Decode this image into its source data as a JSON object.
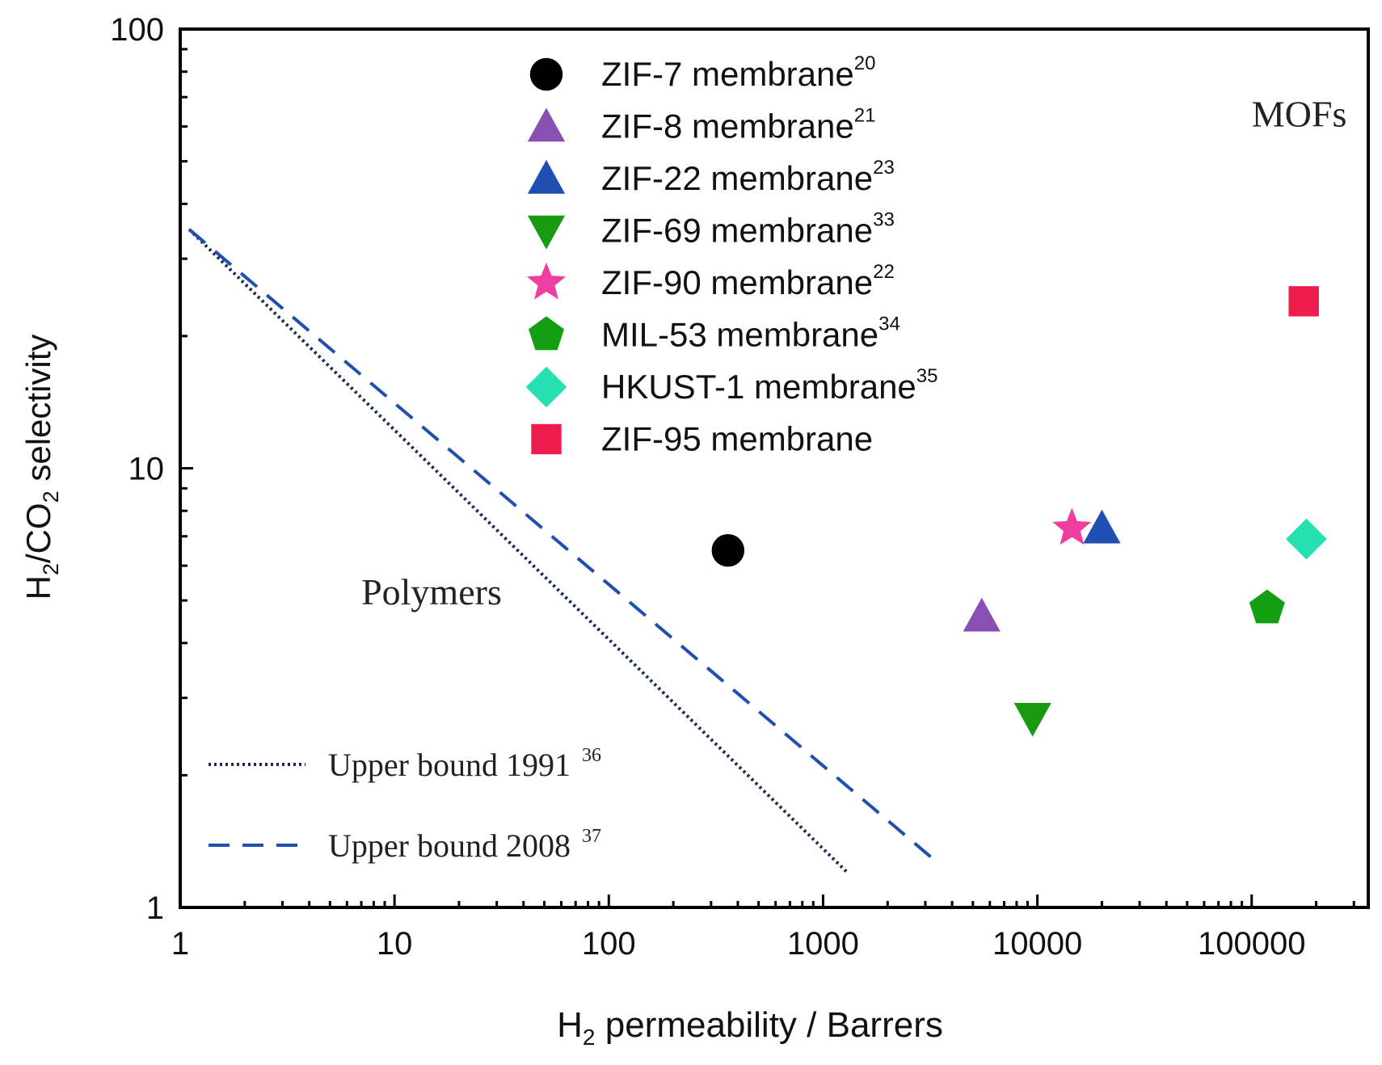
{
  "chart_data": {
    "type": "scatter",
    "xscale": "log",
    "yscale": "log",
    "xlim": [
      1,
      350000
    ],
    "ylim": [
      1,
      100
    ],
    "xlabel": {
      "main": "H",
      "sub": "2",
      "rest": " permeability / Barrers"
    },
    "ylabel": {
      "a": "H",
      "sub1": "2",
      "b": "/CO",
      "sub2": "2",
      "c": " selectivity"
    },
    "xticks": [
      {
        "value": 1,
        "label": "1"
      },
      {
        "value": 10,
        "label": "10"
      },
      {
        "value": 100,
        "label": "100"
      },
      {
        "value": 1000,
        "label": "1000"
      },
      {
        "value": 10000,
        "label": "10000"
      },
      {
        "value": 100000,
        "label": "100000"
      }
    ],
    "yticks": [
      {
        "value": 1,
        "label": "1"
      },
      {
        "value": 10,
        "label": "10"
      },
      {
        "value": 100,
        "label": "100"
      }
    ],
    "region_labels": [
      {
        "text": "MOFs",
        "x": 100000,
        "y": 60
      },
      {
        "text": "Polymers",
        "x": 7,
        "y": 4.9
      }
    ],
    "series": [
      {
        "name": "ZIF-7 membrane",
        "ref": "20",
        "marker": "circle",
        "color": "#000000",
        "x": 360,
        "y": 6.5
      },
      {
        "name": "ZIF-8 membrane",
        "ref": "21",
        "marker": "triangle-up",
        "color": "#8a4fb3",
        "x": 5500,
        "y": 4.6
      },
      {
        "name": "ZIF-22 membrane",
        "ref": "23",
        "marker": "triangle-up",
        "color": "#1f4fb0",
        "x": 20000,
        "y": 7.3
      },
      {
        "name": "ZIF-69 membrane",
        "ref": "33",
        "marker": "triangle-down",
        "color": "#1a9a10",
        "x": 9500,
        "y": 2.7
      },
      {
        "name": "ZIF-90 membrane",
        "ref": "22",
        "marker": "star",
        "color": "#ee3fa0",
        "x": 14500,
        "y": 7.3
      },
      {
        "name": "MIL-53 membrane",
        "ref": "34",
        "marker": "pentagon",
        "color": "#12a012",
        "x": 118000,
        "y": 4.8
      },
      {
        "name": "HKUST-1 membrane",
        "ref": "35",
        "marker": "diamond",
        "color": "#25e0b0",
        "x": 180000,
        "y": 6.9
      },
      {
        "name": "ZIF-95 membrane",
        "ref": "",
        "marker": "square",
        "color": "#ee1c4a",
        "x": 175000,
        "y": 24
      }
    ],
    "lines": [
      {
        "name": "Upper bound 1991",
        "ref": "36",
        "style": "dotted",
        "color": "#1a2a55",
        "points": [
          [
            1.1,
            35
          ],
          [
            1300,
            1.2
          ]
        ]
      },
      {
        "name": "Upper bound 2008",
        "ref": "37",
        "style": "dashed",
        "color": "#1f4fb0",
        "points": [
          [
            1.1,
            35
          ],
          [
            3200,
            1.3
          ]
        ]
      }
    ]
  }
}
